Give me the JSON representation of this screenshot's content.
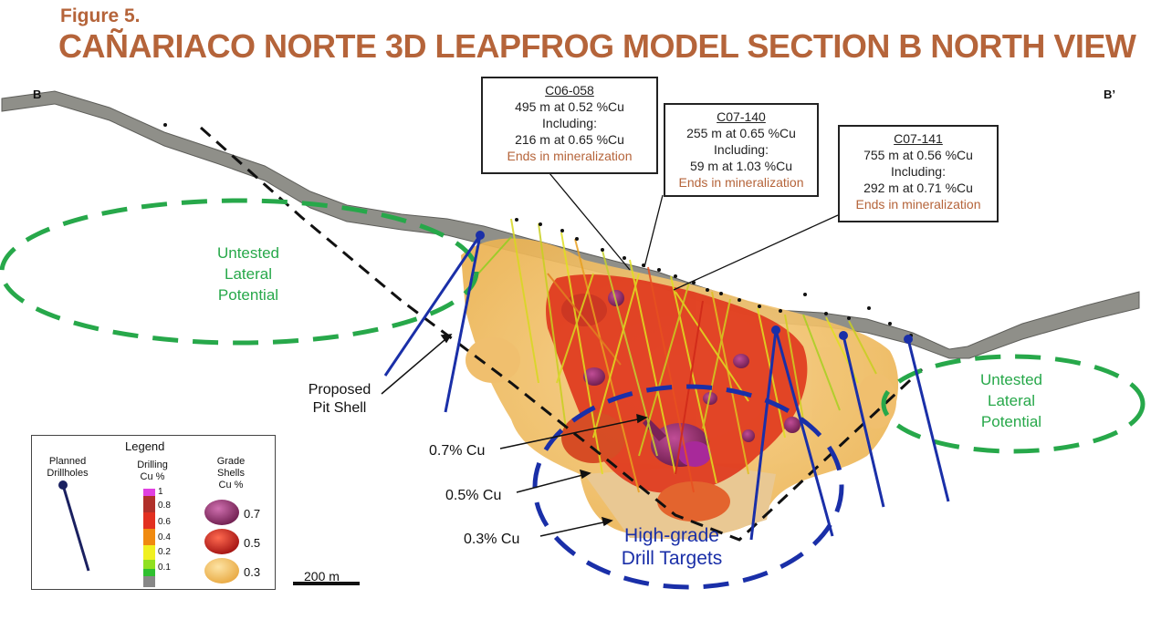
{
  "figure": {
    "label": "Figure 5.",
    "title": "CAÑARIACO NORTE 3D LEAPFROG MODEL SECTION B NORTH VIEW"
  },
  "section_ends": {
    "left": "B",
    "right": "B’"
  },
  "callouts": [
    {
      "hole": "C06-058",
      "line1": "495 m at 0.52 %Cu",
      "line2": "Including:",
      "line3": "216 m at 0.65 %Cu",
      "ends": "Ends in mineralization"
    },
    {
      "hole": "C07-140",
      "line1": "255 m at 0.65 %Cu",
      "line2": "Including:",
      "line3": "59 m at 1.03 %Cu",
      "ends": "Ends in mineralization"
    },
    {
      "hole": "C07-141",
      "line1": "755 m at 0.56 %Cu",
      "line2": "Including:",
      "line3": "292 m at 0.71 %Cu",
      "ends": "Ends in mineralization"
    }
  ],
  "untested_left": {
    "l1": "Untested",
    "l2": "Lateral",
    "l3": "Potential"
  },
  "untested_right": {
    "l1": "Untested",
    "l2": "Lateral",
    "l3": "Potential"
  },
  "pit_shell": {
    "l1": "Proposed",
    "l2": "Pit Shell"
  },
  "shell_labels": {
    "s07": "0.7% Cu",
    "s05": "0.5% Cu",
    "s03": "0.3% Cu"
  },
  "targets": {
    "l1": "High-grade",
    "l2": "Drill Targets"
  },
  "legend": {
    "title": "Legend",
    "planned": {
      "l1": "Planned",
      "l2": "Drillholes"
    },
    "drilling": {
      "l1": "Drilling",
      "l2": "Cu %"
    },
    "grade": {
      "l1": "Grade",
      "l2": "Shells",
      "l3": "Cu %"
    },
    "ticks": [
      "1",
      "0.8",
      "0.6",
      "0.4",
      "0.2",
      "0.1"
    ],
    "shell_values": [
      "0.7",
      "0.5",
      "0.3"
    ],
    "colors": {
      "ramp": [
        "#e040e0",
        "#b0302a",
        "#e23020",
        "#f08a10",
        "#f0f020",
        "#90e020",
        "#30c030",
        "#888888"
      ],
      "shell07": "#8e2a66",
      "shell05": "#d82418",
      "shell03": "#f2bf5c"
    }
  },
  "scale_bar": {
    "label": "200 m"
  },
  "colors": {
    "title": "#b5643a",
    "untested": "#27a84a",
    "planned": "#1a2fa8",
    "terrain": "#8a8a84"
  }
}
